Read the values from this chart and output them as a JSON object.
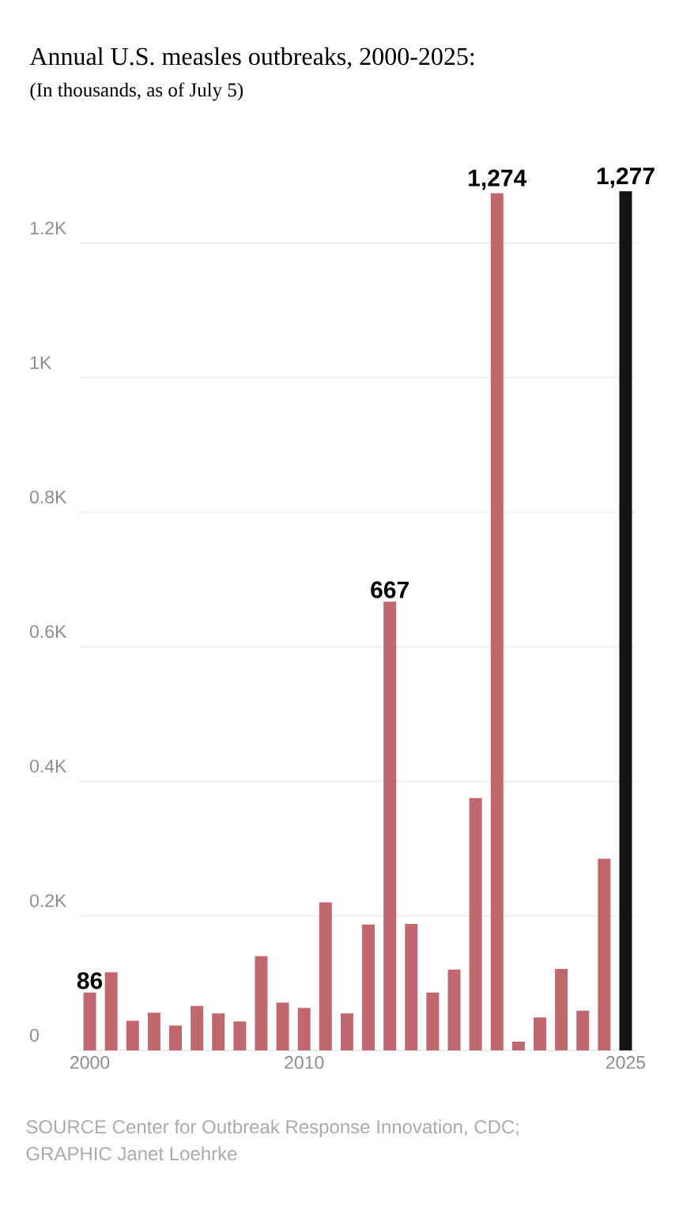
{
  "chart_data": {
    "type": "bar",
    "title": "Annual U.S. measles outbreaks, 2000-2025:",
    "subtitle": "(In thousands, as of July 5)",
    "x": [
      2000,
      2001,
      2002,
      2003,
      2004,
      2005,
      2006,
      2007,
      2008,
      2009,
      2010,
      2011,
      2012,
      2013,
      2014,
      2015,
      2016,
      2017,
      2018,
      2019,
      2020,
      2021,
      2022,
      2023,
      2024,
      2025
    ],
    "values": [
      86,
      116,
      44,
      56,
      37,
      66,
      55,
      43,
      140,
      71,
      63,
      220,
      55,
      187,
      667,
      188,
      86,
      120,
      375,
      1274,
      13,
      49,
      121,
      59,
      285,
      1277
    ],
    "colors": [
      "#c0686e",
      "#c0686e",
      "#c0686e",
      "#c0686e",
      "#c0686e",
      "#c0686e",
      "#c0686e",
      "#c0686e",
      "#c0686e",
      "#c0686e",
      "#c0686e",
      "#c0686e",
      "#c0686e",
      "#c0686e",
      "#c0686e",
      "#c0686e",
      "#c0686e",
      "#c0686e",
      "#c0686e",
      "#c0686e",
      "#c0686e",
      "#c0686e",
      "#c0686e",
      "#c0686e",
      "#c0686e",
      "#141414"
    ],
    "value_labels": [
      "86",
      null,
      null,
      null,
      null,
      null,
      null,
      null,
      null,
      null,
      null,
      null,
      null,
      null,
      "667",
      null,
      null,
      null,
      null,
      "1,274",
      null,
      null,
      null,
      null,
      null,
      "1,277"
    ],
    "xlim": [
      1999.5,
      2025.5
    ],
    "ylim": [
      0,
      1277
    ],
    "xticks": [
      2000,
      2010,
      2025
    ],
    "yticks": [
      0,
      {
        "value": 200,
        "label": "0.2K"
      },
      {
        "value": 400,
        "label": "0.4K"
      },
      {
        "value": 600,
        "label": "0.6K"
      },
      {
        "value": 800,
        "label": "0.8K"
      },
      {
        "value": 1000,
        "label": "1K"
      },
      {
        "value": 1200,
        "label": "1.2K"
      }
    ],
    "grid": "y",
    "annotations": [
      "SOURCE Center for Outbreak Response Innovation, CDC;",
      "GRAPHIC Janet Loehrke"
    ]
  }
}
